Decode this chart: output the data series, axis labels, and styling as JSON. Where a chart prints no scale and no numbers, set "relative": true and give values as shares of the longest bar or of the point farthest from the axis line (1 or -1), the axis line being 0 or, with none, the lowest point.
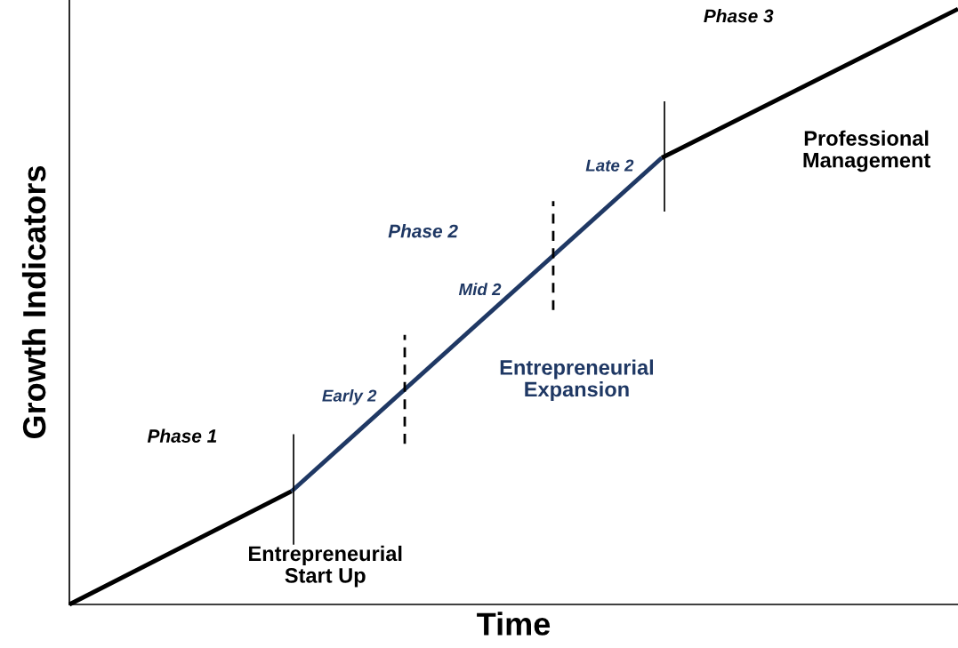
{
  "chart_data": {
    "type": "line",
    "relative": true,
    "xlabel": "Time",
    "ylabel": "Growth Indicators",
    "categories": [
      null,
      null,
      null,
      null,
      null,
      null,
      null,
      null,
      null,
      null,
      null,
      null,
      null
    ],
    "series": [
      {
        "color": "#000000",
        "values": [
          0,
          null,
          null,
          0.19,
          null,
          null,
          null,
          null,
          null,
          null,
          null,
          null,
          null
        ]
      },
      {
        "color": "#1f3864",
        "values": [
          null,
          null,
          null,
          0.19,
          null,
          null,
          null,
          null,
          0.75,
          null,
          null,
          null,
          null
        ]
      },
      {
        "color": "#000000",
        "values": [
          null,
          null,
          null,
          null,
          null,
          null,
          null,
          null,
          0.75,
          null,
          null,
          null,
          1
        ]
      }
    ],
    "annotations": [
      "Phase 1",
      "Entrepreneurial\nStart Up",
      "Early 2",
      "Phase 2",
      "Mid 2",
      "Entrepreneurial\nExpansion",
      "Late 2",
      "Professional\nManagement",
      "Phase 3"
    ],
    "legend": false,
    "marker": "none",
    "line_style": "solid"
  }
}
